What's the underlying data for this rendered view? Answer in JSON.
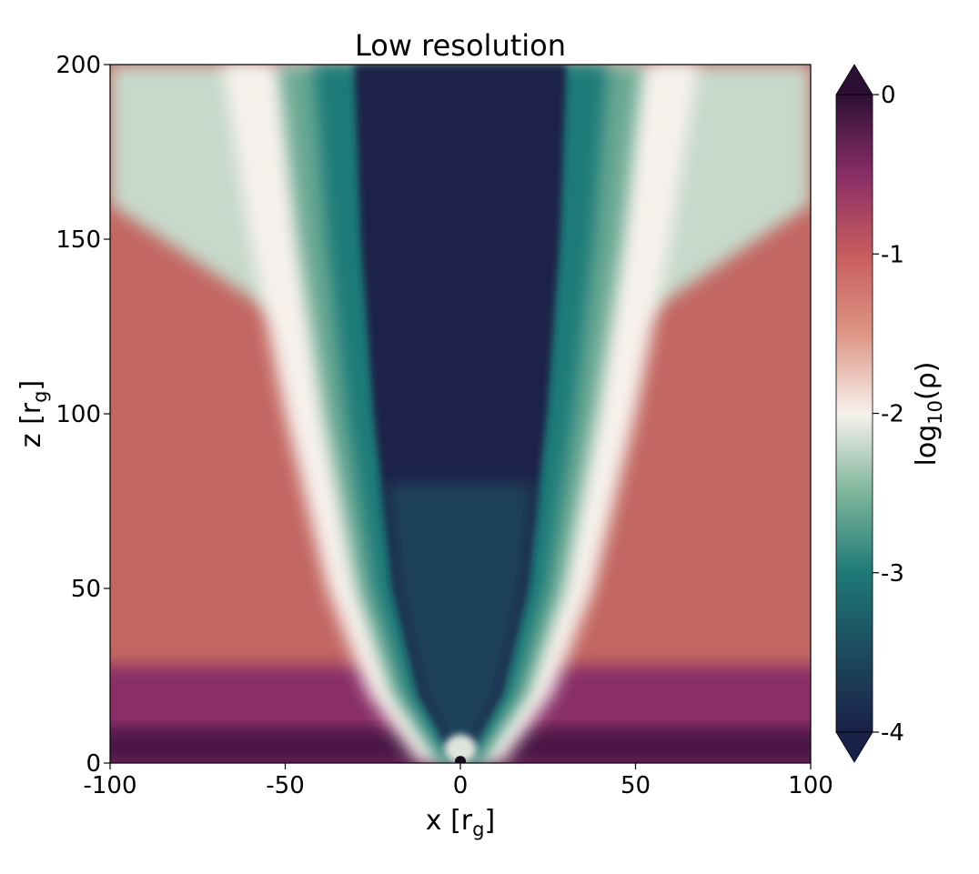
{
  "chart_data": {
    "type": "heatmap",
    "title": "Low resolution",
    "xlabel": {
      "main": "x [r",
      "sub": "g",
      "close": "]"
    },
    "ylabel": {
      "main": "z [r",
      "sub": "g",
      "close": "]"
    },
    "xlim": [
      -100,
      100
    ],
    "ylim": [
      0,
      200
    ],
    "xticks": [
      -100,
      -50,
      0,
      50,
      100
    ],
    "xtick_labels": [
      "-100",
      "-50",
      "0",
      "50",
      "100"
    ],
    "yticks": [
      0,
      50,
      100,
      150,
      200
    ],
    "ytick_labels": [
      "0",
      "50",
      "100",
      "150",
      "200"
    ],
    "colorbar": {
      "label": {
        "main": "log",
        "sub": "10",
        "rest": "(ρ)"
      },
      "range": [
        -4,
        0
      ],
      "ticks": [
        0,
        -1,
        -2,
        -3,
        -4
      ],
      "tick_labels": [
        "0",
        "-1",
        "-2",
        "-3",
        "-4"
      ],
      "extend": "both",
      "colormap_stops": [
        {
          "value": -4.0,
          "color": "#1a2148"
        },
        {
          "value": -3.5,
          "color": "#1d4a5e"
        },
        {
          "value": -3.0,
          "color": "#1e7a78"
        },
        {
          "value": -2.5,
          "color": "#7db59a"
        },
        {
          "value": -2.0,
          "color": "#f7f1ec"
        },
        {
          "value": -1.5,
          "color": "#dd9584"
        },
        {
          "value": -1.0,
          "color": "#c75c5e"
        },
        {
          "value": -0.5,
          "color": "#892d67"
        },
        {
          "value": 0.0,
          "color": "#2d0f35"
        }
      ]
    },
    "field_description_values": {
      "jet_funnel_halfwidth_at_z": [
        {
          "z": 0,
          "halfwidth": 2
        },
        {
          "z": 20,
          "halfwidth": 14
        },
        {
          "z": 50,
          "halfwidth": 22
        },
        {
          "z": 100,
          "halfwidth": 28
        },
        {
          "z": 150,
          "halfwidth": 32
        },
        {
          "z": 200,
          "halfwidth": 34
        }
      ],
      "jet_core_value": -4.0,
      "sheath_value": -3.0,
      "boundary_value": -2.0,
      "wind_value": -1.2,
      "disk_value": -0.5
    }
  }
}
